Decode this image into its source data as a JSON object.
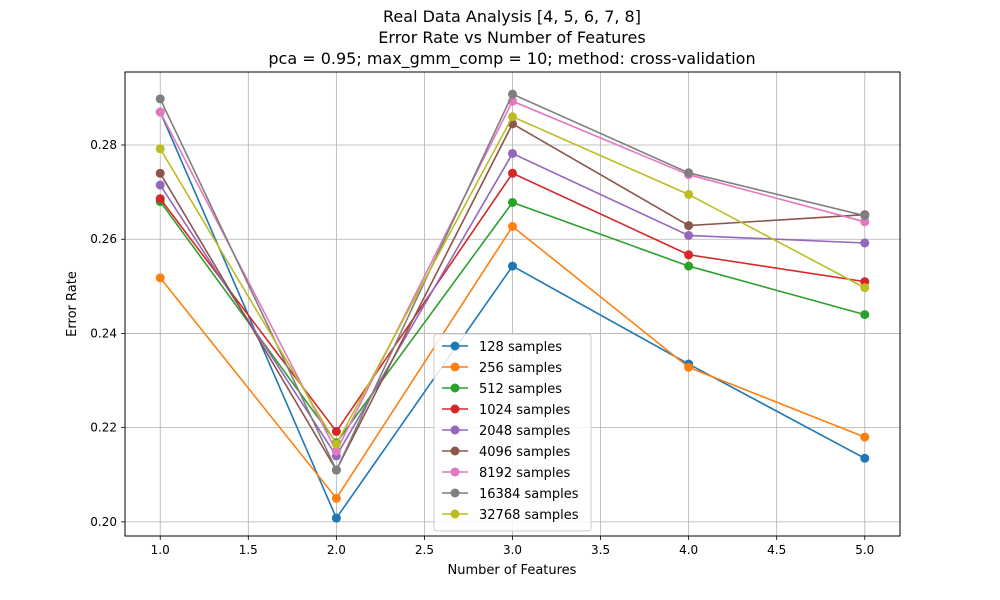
{
  "chart_data": {
    "type": "line",
    "title_lines": [
      "Real Data Analysis [4, 5, 6, 7, 8]",
      "Error Rate vs Number of Features",
      "pca = 0.95; max_gmm_comp = 10; method: cross-validation"
    ],
    "xlabel": "Number of Features",
    "ylabel": "Error Rate",
    "xlim": [
      0.8,
      5.2
    ],
    "ylim": [
      0.197,
      0.2955
    ],
    "xticks": [
      1.0,
      1.5,
      2.0,
      2.5,
      3.0,
      3.5,
      4.0,
      4.5,
      5.0
    ],
    "xtick_labels": [
      "1.0",
      "1.5",
      "2.0",
      "2.5",
      "3.0",
      "3.5",
      "4.0",
      "4.5",
      "5.0"
    ],
    "yticks": [
      0.2,
      0.22,
      0.24,
      0.26,
      0.28
    ],
    "ytick_labels": [
      "0.20",
      "0.22",
      "0.24",
      "0.26",
      "0.28"
    ],
    "grid": true,
    "legend_position": "lower-center",
    "x": [
      1,
      2,
      3,
      4,
      5
    ],
    "series": [
      {
        "name": "128 samples",
        "color": "#1f77b4",
        "values": [
          0.287,
          0.2008,
          0.2543,
          0.2335,
          0.2135
        ]
      },
      {
        "name": "256 samples",
        "color": "#ff7f0e",
        "values": [
          0.2518,
          0.205,
          0.2627,
          0.2328,
          0.218
        ]
      },
      {
        "name": "512 samples",
        "color": "#2ca02c",
        "values": [
          0.268,
          0.2168,
          0.2678,
          0.2543,
          0.244
        ]
      },
      {
        "name": "1024 samples",
        "color": "#d62728",
        "values": [
          0.2686,
          0.2192,
          0.274,
          0.2567,
          0.251
        ]
      },
      {
        "name": "2048 samples",
        "color": "#9467bd",
        "values": [
          0.2715,
          0.214,
          0.2782,
          0.2608,
          0.2592
        ]
      },
      {
        "name": "4096 samples",
        "color": "#8c564b",
        "values": [
          0.274,
          0.211,
          0.2845,
          0.2629,
          0.2652
        ]
      },
      {
        "name": "8192 samples",
        "color": "#e377c2",
        "values": [
          0.287,
          0.215,
          0.2893,
          0.2737,
          0.2637
        ]
      },
      {
        "name": "16384 samples",
        "color": "#7f7f7f",
        "values": [
          0.2898,
          0.211,
          0.2908,
          0.2741,
          0.265
        ]
      },
      {
        "name": "32768 samples",
        "color": "#bcbd22",
        "values": [
          0.2792,
          0.2165,
          0.286,
          0.2695,
          0.2497
        ]
      }
    ]
  }
}
